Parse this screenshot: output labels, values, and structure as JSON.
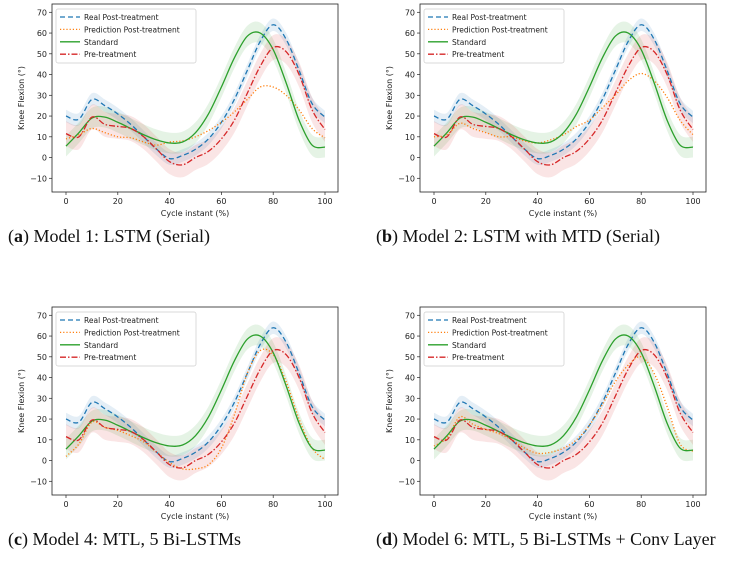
{
  "chart_data": [
    {
      "type": "line",
      "panel": "a",
      "caption_letter": "a",
      "caption_text": "Model 1: LSTM (Serial)",
      "prediction": [
        9,
        11,
        14,
        12,
        10,
        9.5,
        7.5,
        6,
        7.5,
        8,
        10,
        13,
        17,
        22,
        28,
        34,
        34,
        30,
        23,
        14,
        9.5
      ]
    },
    {
      "type": "line",
      "panel": "b",
      "caption_letter": "b",
      "caption_text": "Model 2: LSTM with MTD (Serial)",
      "prediction": [
        10,
        11,
        16.5,
        14,
        12,
        10,
        10,
        8,
        7,
        8.5,
        11,
        15,
        18,
        24,
        30,
        37,
        40.5,
        37,
        29,
        18,
        11
      ]
    },
    {
      "type": "line",
      "panel": "c",
      "caption_letter": "c",
      "caption_text": "Model 4: MTL, 5 Bi-LSTMs",
      "prediction": [
        2,
        8,
        18.5,
        16,
        14.5,
        12,
        9,
        4,
        -1,
        -4,
        -4,
        -2,
        6,
        22,
        42,
        53,
        51,
        38,
        20,
        6,
        0.5
      ]
    },
    {
      "type": "line",
      "panel": "d",
      "caption_letter": "d",
      "caption_text": "Model 6: MTL, 5 Bi-LSTMs + Conv Layer",
      "prediction": [
        7,
        11,
        21,
        17.5,
        15,
        13,
        10,
        6,
        3.5,
        4,
        6,
        10,
        17,
        27,
        38,
        46,
        50,
        42,
        26,
        8,
        4.5
      ]
    }
  ],
  "shared": {
    "xlabel": "Cycle instant (%)",
    "ylabel": "Knee Flexion (°)",
    "xlim": [
      -5,
      105
    ],
    "ylim": [
      -15,
      72
    ],
    "xticks": [
      0,
      20,
      40,
      60,
      80,
      100
    ],
    "yticks": [
      -10,
      0,
      10,
      20,
      30,
      40,
      50,
      60,
      70
    ],
    "x": [
      0,
      5,
      10,
      15,
      20,
      25,
      30,
      35,
      40,
      45,
      50,
      55,
      60,
      65,
      70,
      75,
      80,
      85,
      90,
      95,
      100
    ],
    "legend_placement": "top-left",
    "series": [
      {
        "key": "real",
        "name": "Real Post-treatment",
        "color": "#1f77b4",
        "style": "dashed",
        "band": 3,
        "values": [
          20,
          18.5,
          28,
          25,
          21,
          16,
          10,
          4,
          -0.5,
          1,
          4,
          9,
          17,
          28,
          42,
          56,
          64,
          57,
          42,
          26,
          19.5
        ]
      },
      {
        "key": "prediction",
        "name": "Prediction Post-treatment",
        "color": "#ff7f0e",
        "style": "dotted"
      },
      {
        "key": "standard",
        "name": "Standard",
        "color": "#2ca02c",
        "style": "solid",
        "band": 5,
        "values": [
          5.5,
          12,
          19,
          19.5,
          17,
          14,
          11,
          8.5,
          7,
          7.5,
          12,
          21,
          34,
          48,
          58.5,
          60,
          52,
          36,
          18,
          6,
          5
        ]
      },
      {
        "key": "pre",
        "name": "Pre-treatment",
        "color": "#d62728",
        "style": "dashdot",
        "band": 6,
        "values": [
          11.5,
          10,
          19.5,
          16,
          15,
          14,
          10,
          4,
          -2,
          -3.5,
          0,
          3,
          9,
          18,
          31,
          44,
          53,
          51,
          40,
          23,
          13.5
        ]
      }
    ]
  }
}
